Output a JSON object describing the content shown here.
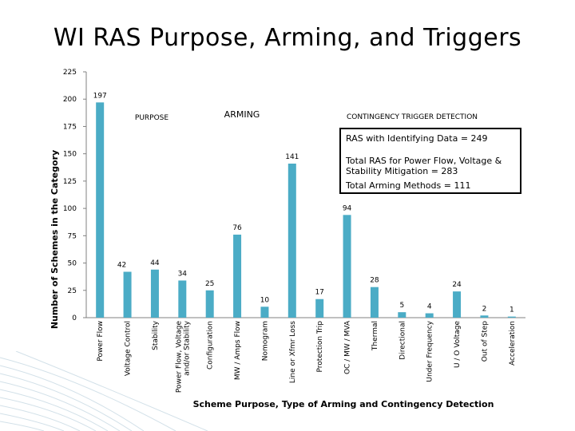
{
  "title": "WI RAS  Purpose, Arming, and Triggers",
  "info_box": {
    "line1": "RAS with Identifying Data = 249",
    "line2": "Total RAS for Power Flow, Voltage & Stability Mitigation = 283",
    "line3": "Total Arming Methods = 111"
  },
  "colors": {
    "bar": "#4BACC6",
    "axis": "#808080"
  },
  "chart_data": {
    "type": "bar",
    "title": "WI RAS  Purpose, Arming, and Triggers",
    "ylabel": "Number of Schemes in the Category",
    "xlabel": "Scheme Purpose, Type of Arming and Contingency Detection",
    "ylim": [
      0,
      225
    ],
    "yticks": [
      0,
      25,
      50,
      75,
      100,
      125,
      150,
      175,
      200,
      225
    ],
    "grid": false,
    "sections": [
      {
        "label": "PURPOSE"
      },
      {
        "label": "ARMING"
      },
      {
        "label": "CONTINGENCY TRIGGER DETECTION"
      }
    ],
    "categories": [
      "Power Flow",
      "Voltage Control",
      "Stability",
      "Power Flow, Voltage and/or Stability",
      "Configuration",
      "MW / Amps Flow",
      "Nomogram",
      "Line or Xfmr Loss",
      "Protection Trip",
      "OC / MW / MVA",
      "Thermal",
      "Directional",
      "Under Frequency",
      "U / O Voltage",
      "Out of Step",
      "Acceleration"
    ],
    "values": [
      197,
      42,
      44,
      34,
      25,
      76,
      10,
      141,
      17,
      94,
      28,
      5,
      4,
      24,
      2,
      1
    ],
    "data_labels": [
      "197",
      "42",
      "44",
      "34",
      "25",
      "76",
      "10",
      "141",
      "17",
      "94",
      "28",
      "5",
      "4",
      "24",
      "2",
      "1"
    ]
  }
}
